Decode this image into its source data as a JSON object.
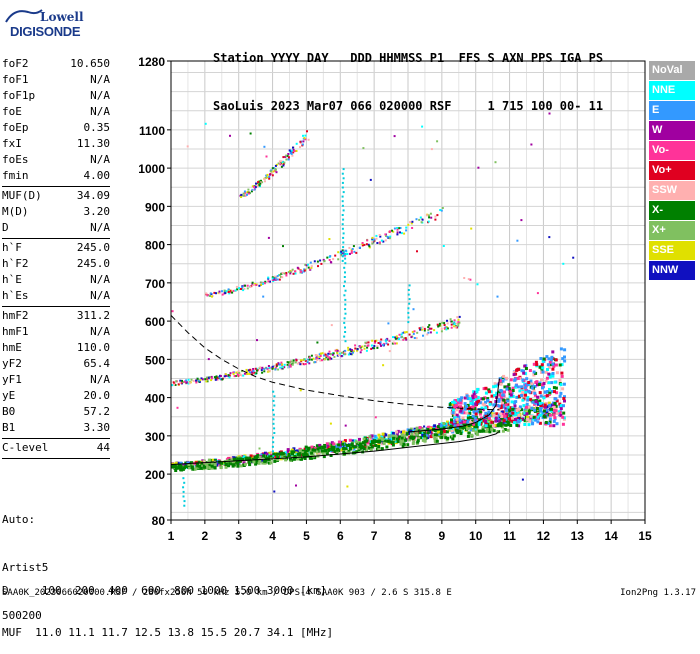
{
  "logo": {
    "brand_top": "Lowell",
    "brand_bottom": "DIGISONDE"
  },
  "header": {
    "line1": "Station YYYY DAY   DDD HHMMSS P1  FFS S AXN PPS IGA PS",
    "line2": "SaoLuis 2023 Mar07 066 020000 RSF     1 715 100 00- 11"
  },
  "params": [
    {
      "label": "foF2",
      "value": "10.650"
    },
    {
      "label": "foF1",
      "value": "N/A"
    },
    {
      "label": "foF1p",
      "value": "N/A"
    },
    {
      "label": "foE",
      "value": "N/A"
    },
    {
      "label": "foEp",
      "value": "0.35"
    },
    {
      "label": "fxI",
      "value": "11.30"
    },
    {
      "label": "foEs",
      "value": "N/A"
    },
    {
      "label": "fmin",
      "value": "4.00"
    },
    {
      "sep": true
    },
    {
      "label": "MUF(D)",
      "value": "34.09"
    },
    {
      "label": "M(D)",
      "value": "3.20"
    },
    {
      "label": "D",
      "value": "N/A"
    },
    {
      "sep": true
    },
    {
      "label": "h`F",
      "value": "245.0"
    },
    {
      "label": "h`F2",
      "value": "245.0"
    },
    {
      "label": "h`E",
      "value": "N/A"
    },
    {
      "label": "h`Es",
      "value": "N/A"
    },
    {
      "sep": true
    },
    {
      "label": "hmF2",
      "value": "311.2"
    },
    {
      "label": "hmF1",
      "value": "N/A"
    },
    {
      "label": "hmE",
      "value": "110.0"
    },
    {
      "label": "yF2",
      "value": "65.4"
    },
    {
      "label": "yF1",
      "value": "N/A"
    },
    {
      "label": "yE",
      "value": "20.0"
    },
    {
      "label": "B0",
      "value": "57.2"
    },
    {
      "label": "B1",
      "value": "3.30"
    },
    {
      "sep": true
    },
    {
      "label": "C-level",
      "value": "44"
    },
    {
      "sep": true
    }
  ],
  "auto": {
    "line1": "Auto:",
    "line2": "Artist5",
    "line3": "500200"
  },
  "legend": [
    {
      "label": "NoVal",
      "color": "#a9a9a9"
    },
    {
      "label": "NNE",
      "color": "#00ffff"
    },
    {
      "label": "E",
      "color": "#3399ff"
    },
    {
      "label": "W",
      "color": "#a000a0"
    },
    {
      "label": "Vo-",
      "color": "#ff3399"
    },
    {
      "label": "Vo+",
      "color": "#e00020"
    },
    {
      "label": "SSW",
      "color": "#ffb0b0"
    },
    {
      "label": "X-",
      "color": "#008000"
    },
    {
      "label": "X+",
      "color": "#80c060"
    },
    {
      "label": "SSE",
      "color": "#e0e000"
    },
    {
      "label": "NNW",
      "color": "#1010c0"
    }
  ],
  "footer": {
    "line1": "D     100  200  400  600  800 1000 1500 3000 [km]",
    "line2": "MUF  11.0 11.1 11.7 12.5 13.8 15.5 20.7 34.1 [MHz]",
    "file": "SAA0K_2023066020000.RSF / 280fx256h 50 kHz 5.0 km / DPS-4 SAA0K 903 / 2.6 S 315.8 E",
    "version": "Ion2Png 1.3.17"
  },
  "chart_data": {
    "type": "scatter",
    "xlabel": "",
    "ylabel": "",
    "xlim": [
      1,
      15
    ],
    "ylim": [
      80,
      1280
    ],
    "x_ticks": [
      1,
      2,
      3,
      4,
      5,
      6,
      7,
      8,
      9,
      10,
      11,
      12,
      13,
      14,
      15
    ],
    "y_ticks": [
      80,
      200,
      300,
      400,
      500,
      600,
      700,
      800,
      900,
      1000,
      1100,
      1280
    ],
    "grid": true,
    "traces": [
      {
        "name": "F2 first hop (O)",
        "x_range": [
          1.0,
          12.5
        ],
        "h_start": 225,
        "h_end": 380
      },
      {
        "name": "X trace",
        "x_range": [
          1.0,
          11.0
        ],
        "h_start": 220,
        "h_end": 340
      },
      {
        "name": "2nd hop",
        "x_range": [
          1.0,
          9.5
        ],
        "h_start": 440,
        "h_end": 600
      },
      {
        "name": "3rd hop",
        "x_range": [
          2.0,
          9.0
        ],
        "h_start": 670,
        "h_end": 890
      },
      {
        "name": "4th hop",
        "x_range": [
          3.0,
          5.0
        ],
        "h_start": 930,
        "h_end": 1090
      }
    ],
    "dashed_curve": [
      [
        1.0,
        615
      ],
      [
        1.5,
        570
      ],
      [
        2.0,
        530
      ],
      [
        2.5,
        500
      ],
      [
        3.0,
        475
      ],
      [
        3.5,
        455
      ],
      [
        4.0,
        440
      ],
      [
        5.0,
        420
      ],
      [
        6.0,
        405
      ],
      [
        7.0,
        392
      ],
      [
        8.0,
        382
      ],
      [
        9.0,
        375
      ],
      [
        10.0,
        370
      ],
      [
        10.7,
        368
      ]
    ],
    "profile_curve": [
      [
        1.0,
        225
      ],
      [
        3.0,
        235
      ],
      [
        5.0,
        245
      ],
      [
        7.0,
        260
      ],
      [
        8.5,
        275
      ],
      [
        9.5,
        285
      ],
      [
        10.2,
        295
      ],
      [
        10.6,
        305
      ],
      [
        10.7,
        312
      ]
    ],
    "o_trace_curve": [
      [
        8.0,
        310
      ],
      [
        9.0,
        318
      ],
      [
        9.6,
        325
      ],
      [
        10.0,
        335
      ],
      [
        10.4,
        355
      ],
      [
        10.6,
        380
      ],
      [
        10.7,
        450
      ]
    ]
  }
}
